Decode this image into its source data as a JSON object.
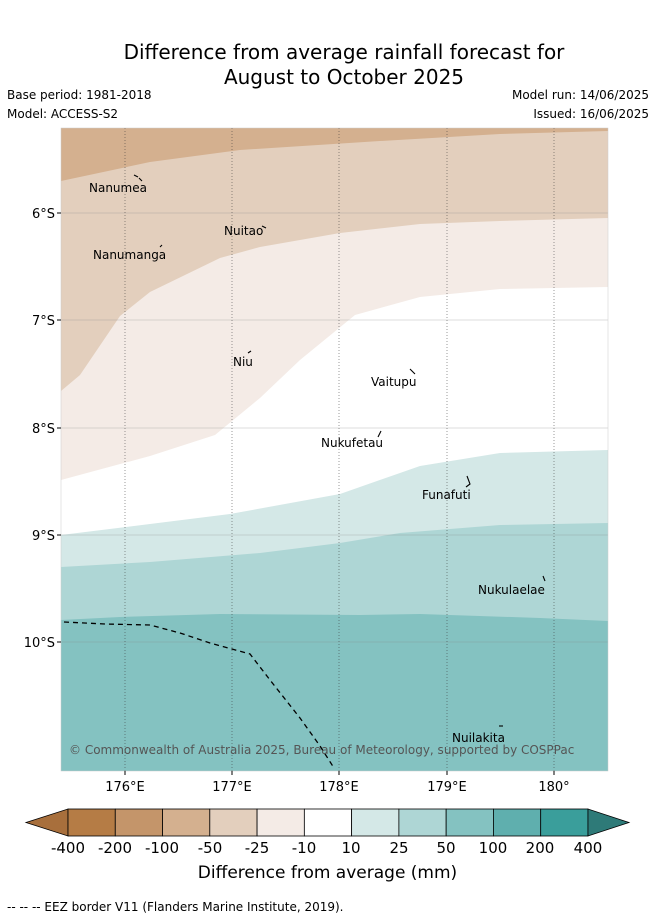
{
  "title_line1": "Difference from average rainfall forecast for",
  "title_line2": "August to October 2025",
  "base_period": "Base period: 1981-2018",
  "model": "Model: ACCESS-S2",
  "model_run": "Model run: 14/06/2025",
  "issued": "Issued: 16/06/2025",
  "lat_labels": [
    "6°S",
    "7°S",
    "8°S",
    "9°S",
    "10°S"
  ],
  "lon_labels": [
    "176°E",
    "177°E",
    "178°E",
    "179°E",
    "180°"
  ],
  "islands": [
    {
      "name": "Nanumea"
    },
    {
      "name": "Nuitao"
    },
    {
      "name": "Nanumanga"
    },
    {
      "name": "Niu"
    },
    {
      "name": "Vaitupu"
    },
    {
      "name": "Nukufetau"
    },
    {
      "name": "Funafuti"
    },
    {
      "name": "Nukulaelae"
    },
    {
      "name": "Nuilakita"
    }
  ],
  "copyright": "© Commonwealth of Australia 2025, Bureau of Meteorology, supported by COSPPac",
  "colorbar": {
    "labels": [
      "-400",
      "-200",
      "-100",
      "-50",
      "-25",
      "-10",
      "10",
      "25",
      "50",
      "100",
      "200",
      "400"
    ],
    "colors": [
      "#a86f3c",
      "#b57c45",
      "#c4956a",
      "#d4b08f",
      "#e3cfbd",
      "#f4ebe6",
      "#ffffff",
      "#d4e8e7",
      "#aed6d5",
      "#84c2c1",
      "#5fafae",
      "#3a9e9b",
      "#2e7a78"
    ],
    "title": "Difference from average (mm)"
  },
  "footer": "--  --  -- EEZ border V11 (Flanders Marine Institute, 2019)."
}
